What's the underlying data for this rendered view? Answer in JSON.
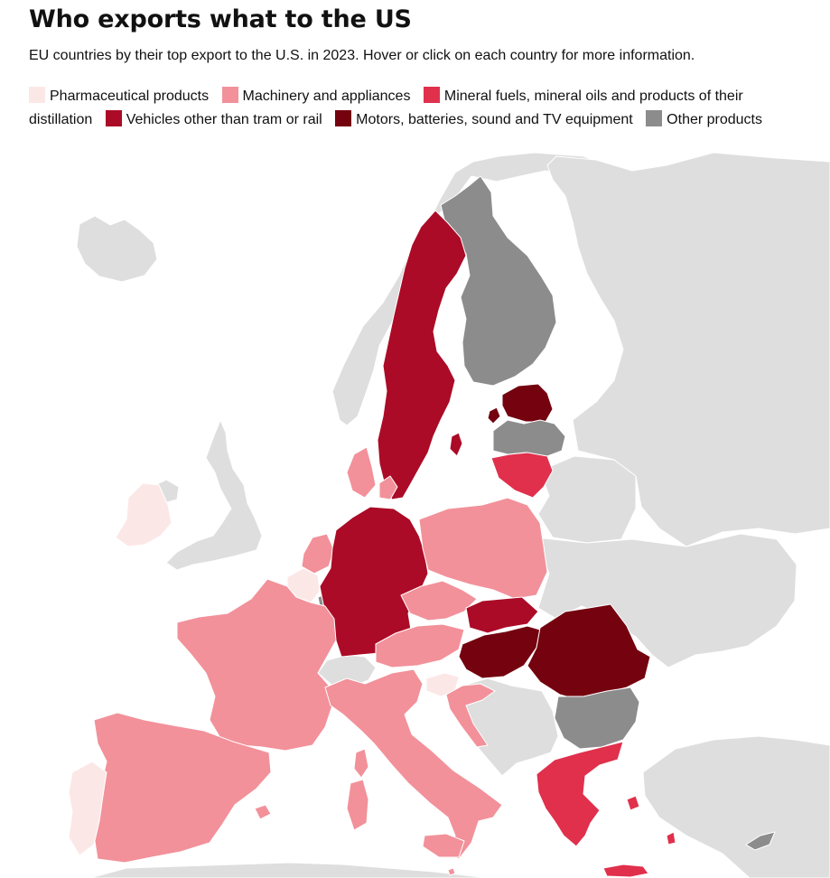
{
  "header": {
    "title": "Who exports what to the US",
    "subtitle": "EU countries by their top export to the U.S. in 2023. Hover or click on each country for more information."
  },
  "legend": [
    {
      "key": "pharma",
      "label": "Pharmaceutical products",
      "color": "#fce7e7"
    },
    {
      "key": "machinery",
      "label": "Machinery and appliances",
      "color": "#f2919a"
    },
    {
      "key": "fuels",
      "label": "Mineral fuels, mineral oils and products of their distillation",
      "color": "#e0304c"
    },
    {
      "key": "vehicles",
      "label": "Vehicles other than tram or rail",
      "color": "#ab0b27"
    },
    {
      "key": "motors",
      "label": "Motors, batteries, sound and TV equipment",
      "color": "#74020f"
    },
    {
      "key": "other",
      "label": "Other products",
      "color": "#8c8c8c"
    }
  ],
  "colors": {
    "non_eu": "#dedede"
  },
  "countries": [
    {
      "id": "ie",
      "name": "Ireland",
      "category": "pharma"
    },
    {
      "id": "be",
      "name": "Belgium",
      "category": "pharma"
    },
    {
      "id": "pt",
      "name": "Portugal",
      "category": "pharma"
    },
    {
      "id": "si",
      "name": "Slovenia",
      "category": "pharma"
    },
    {
      "id": "fr",
      "name": "France",
      "category": "machinery"
    },
    {
      "id": "es",
      "name": "Spain",
      "category": "machinery"
    },
    {
      "id": "it",
      "name": "Italy",
      "category": "machinery"
    },
    {
      "id": "nl",
      "name": "Netherlands",
      "category": "machinery"
    },
    {
      "id": "dk",
      "name": "Denmark",
      "category": "machinery"
    },
    {
      "id": "pl",
      "name": "Poland",
      "category": "machinery"
    },
    {
      "id": "cz",
      "name": "Czechia",
      "category": "machinery"
    },
    {
      "id": "at",
      "name": "Austria",
      "category": "machinery"
    },
    {
      "id": "hr",
      "name": "Croatia",
      "category": "machinery"
    },
    {
      "id": "mt",
      "name": "Malta",
      "category": "machinery"
    },
    {
      "id": "lt",
      "name": "Lithuania",
      "category": "fuels"
    },
    {
      "id": "gr",
      "name": "Greece",
      "category": "fuels"
    },
    {
      "id": "se",
      "name": "Sweden",
      "category": "vehicles"
    },
    {
      "id": "de",
      "name": "Germany",
      "category": "vehicles"
    },
    {
      "id": "sk",
      "name": "Slovakia",
      "category": "vehicles"
    },
    {
      "id": "ee",
      "name": "Estonia",
      "category": "motors"
    },
    {
      "id": "hu",
      "name": "Hungary",
      "category": "motors"
    },
    {
      "id": "ro",
      "name": "Romania",
      "category": "motors"
    },
    {
      "id": "fi",
      "name": "Finland",
      "category": "other"
    },
    {
      "id": "lv",
      "name": "Latvia",
      "category": "other"
    },
    {
      "id": "bg",
      "name": "Bulgaria",
      "category": "other"
    },
    {
      "id": "cy",
      "name": "Cyprus",
      "category": "other"
    },
    {
      "id": "lu",
      "name": "Luxembourg",
      "category": "other"
    }
  ]
}
